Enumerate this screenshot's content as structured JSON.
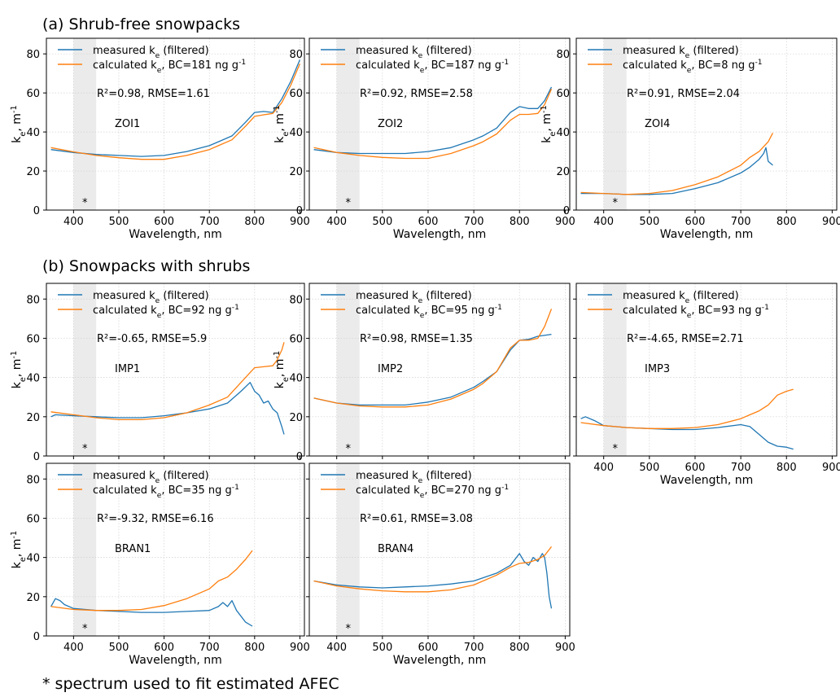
{
  "section_titles": {
    "a": "(a) Shrub-free snowpacks",
    "b": "(b) Snowpacks with shrubs"
  },
  "footnote": "* spectrum used to fit estimated AFEC",
  "colors": {
    "measured": "#1f77b4",
    "calculated": "#ff7f0e",
    "shade": "#ebebeb",
    "grid": "#d0d0d0"
  },
  "chart_data": [
    {
      "type": "line",
      "site": "ZOI1",
      "xlabel": "Wavelength, nm",
      "ylabel": "k_e, m^-1",
      "xlim": [
        340,
        910
      ],
      "ylim": [
        0,
        88
      ],
      "xticks": [
        400,
        500,
        600,
        700,
        800,
        900
      ],
      "yticks": [
        0,
        20,
        40,
        60,
        80
      ],
      "shaded_range": [
        400,
        450
      ],
      "marker_label": "*",
      "legend": [
        "measured k_e (filtered)",
        "calculated k_e, BC=181 ng g^-1"
      ],
      "stats": "R²=0.98, RMSE=1.61",
      "series": [
        {
          "name": "measured k_e (filtered)",
          "x": [
            350,
            400,
            450,
            500,
            550,
            600,
            650,
            700,
            720,
            750,
            780,
            800,
            820,
            840,
            860,
            880,
            900
          ],
          "y": [
            31,
            29.5,
            28.5,
            28,
            27.5,
            28,
            30,
            33,
            35,
            38,
            45,
            50,
            50.5,
            50,
            57,
            66,
            77
          ]
        },
        {
          "name": "calculated k_e, BC=181 ng g^-1",
          "x": [
            350,
            400,
            450,
            500,
            550,
            600,
            650,
            700,
            720,
            750,
            780,
            800,
            820,
            840,
            860,
            880,
            900
          ],
          "y": [
            32,
            29.8,
            28,
            26.8,
            26,
            26,
            28,
            31,
            33,
            36,
            43,
            48,
            48.8,
            49.5,
            55,
            64,
            75
          ]
        }
      ]
    },
    {
      "type": "line",
      "site": "ZOI2",
      "xlabel": "Wavelength, nm",
      "ylabel": "k_e, m^-1",
      "xlim": [
        340,
        910
      ],
      "ylim": [
        0,
        88
      ],
      "xticks": [
        400,
        500,
        600,
        700,
        800,
        900
      ],
      "yticks": [
        0,
        20,
        40,
        60,
        80
      ],
      "shaded_range": [
        400,
        450
      ],
      "marker_label": "*",
      "legend": [
        "measured k_e (filtered)",
        "calculated k_e, BC=187 ng g^-1"
      ],
      "stats": "R²=0.92, RMSE=2.58",
      "series": [
        {
          "name": "measured k_e (filtered)",
          "x": [
            350,
            400,
            450,
            500,
            550,
            600,
            650,
            700,
            720,
            750,
            780,
            800,
            820,
            840,
            855,
            870
          ],
          "y": [
            31,
            29.5,
            29,
            29,
            29,
            30,
            32,
            36,
            38,
            42,
            50,
            53,
            52,
            52,
            56,
            63
          ]
        },
        {
          "name": "calculated k_e, BC=187 ng g^-1",
          "x": [
            350,
            400,
            450,
            500,
            550,
            600,
            650,
            700,
            720,
            750,
            780,
            800,
            820,
            840,
            855,
            870
          ],
          "y": [
            32,
            29.5,
            28,
            27,
            26.5,
            26.5,
            29,
            33,
            35,
            39,
            46,
            49,
            49,
            49.5,
            54,
            62
          ]
        }
      ]
    },
    {
      "type": "line",
      "site": "ZOI4",
      "xlabel": "Wavelength, nm",
      "ylabel": "k_e, m^-1",
      "xlim": [
        340,
        910
      ],
      "ylim": [
        0,
        88
      ],
      "xticks": [
        400,
        500,
        600,
        700,
        800,
        900
      ],
      "yticks": [
        0,
        20,
        40,
        60,
        80
      ],
      "shaded_range": [
        400,
        450
      ],
      "marker_label": "*",
      "legend": [
        "measured k_e (filtered)",
        "calculated k_e, BC=8 ng g^-1"
      ],
      "stats": "R²=0.91, RMSE=2.04",
      "series": [
        {
          "name": "measured k_e (filtered)",
          "x": [
            350,
            400,
            450,
            500,
            550,
            600,
            650,
            700,
            720,
            740,
            750,
            755,
            760,
            770
          ],
          "y": [
            8.5,
            8.5,
            8,
            8,
            8.5,
            11,
            14,
            19,
            22,
            26,
            29,
            32,
            25,
            23
          ]
        },
        {
          "name": "calculated k_e, BC=8 ng g^-1",
          "x": [
            350,
            400,
            450,
            500,
            550,
            600,
            650,
            700,
            720,
            740,
            760,
            770
          ],
          "y": [
            9,
            8.5,
            8,
            8.5,
            10,
            13,
            17,
            23,
            27,
            30,
            35,
            39.5
          ]
        }
      ]
    },
    {
      "type": "line",
      "site": "IMP1",
      "xlabel": "",
      "ylabel": "k_e, m^-1",
      "xlim": [
        340,
        910
      ],
      "ylim": [
        0,
        88
      ],
      "xticks": [
        400,
        500,
        600,
        700,
        800,
        900
      ],
      "yticks": [
        0,
        20,
        40,
        60,
        80
      ],
      "shaded_range": [
        400,
        450
      ],
      "marker_label": "*",
      "legend": [
        "measured k_e (filtered)",
        "calculated k_e, BC=92 ng g^-1"
      ],
      "stats": "R²=-0.65, RMSE=5.9",
      "series": [
        {
          "name": "measured k_e (filtered)",
          "x": [
            350,
            360,
            400,
            450,
            500,
            550,
            600,
            650,
            700,
            740,
            770,
            790,
            800,
            810,
            820,
            830,
            840,
            850,
            860,
            865
          ],
          "y": [
            20,
            21,
            20.5,
            20,
            19.5,
            19.5,
            20.5,
            22,
            24,
            27,
            33,
            37.5,
            33,
            31,
            27,
            28,
            24,
            22,
            15,
            11
          ]
        },
        {
          "name": "calculated k_e, BC=92 ng g^-1",
          "x": [
            350,
            400,
            450,
            500,
            550,
            600,
            650,
            700,
            740,
            780,
            800,
            820,
            840,
            850,
            860,
            865
          ],
          "y": [
            22.5,
            21,
            19.5,
            18.5,
            18.5,
            19.5,
            22,
            26,
            30,
            40,
            45,
            45.5,
            46,
            49,
            54,
            58
          ]
        }
      ]
    },
    {
      "type": "line",
      "site": "IMP2",
      "xlabel": "",
      "ylabel": "k_e, m^-1",
      "xlim": [
        340,
        910
      ],
      "ylim": [
        0,
        88
      ],
      "xticks": [
        400,
        500,
        600,
        700,
        800,
        900
      ],
      "yticks": [
        0,
        20,
        40,
        60,
        80
      ],
      "shaded_range": [
        400,
        450
      ],
      "marker_label": "*",
      "legend": [
        "measured k_e (filtered)",
        "calculated k_e, BC=95 ng g^-1"
      ],
      "stats": "R²=0.98, RMSE=1.35",
      "series": [
        {
          "name": "measured k_e (filtered)",
          "x": [
            350,
            400,
            450,
            500,
            550,
            600,
            650,
            700,
            720,
            750,
            780,
            800,
            820,
            840,
            870
          ],
          "y": [
            29.5,
            27,
            26,
            26,
            26,
            27.5,
            30,
            35,
            38,
            43,
            54,
            59,
            59.5,
            61,
            62
          ]
        },
        {
          "name": "calculated k_e, BC=95 ng g^-1",
          "x": [
            350,
            400,
            450,
            500,
            550,
            600,
            650,
            700,
            720,
            750,
            780,
            800,
            820,
            840,
            855,
            870
          ],
          "y": [
            29.5,
            27,
            25.5,
            25,
            25,
            26,
            29,
            34,
            37,
            43,
            55,
            59,
            59,
            60,
            66,
            75
          ]
        }
      ]
    },
    {
      "type": "line",
      "site": "IMP3",
      "xlabel": "Wavelength, nm",
      "ylabel": "",
      "xlim": [
        340,
        910
      ],
      "ylim": [
        0,
        88
      ],
      "xticks": [
        400,
        500,
        600,
        700,
        800,
        900
      ],
      "yticks": [],
      "shaded_range": [
        400,
        450
      ],
      "marker_label": "*",
      "legend": [
        "measured k_e (filtered)",
        "calculated k_e, BC=93 ng g^-1"
      ],
      "stats": "R²=-4.65, RMSE=2.71",
      "series": [
        {
          "name": "measured k_e (filtered)",
          "x": [
            350,
            360,
            380,
            400,
            450,
            500,
            550,
            600,
            650,
            700,
            720,
            740,
            760,
            780,
            800,
            815
          ],
          "y": [
            19,
            20,
            18,
            15.5,
            14.5,
            14,
            13.5,
            13.5,
            14.5,
            16,
            15,
            11,
            7,
            5,
            4.5,
            3.5
          ]
        },
        {
          "name": "calculated k_e, BC=93 ng g^-1",
          "x": [
            350,
            400,
            450,
            500,
            550,
            600,
            650,
            700,
            720,
            740,
            760,
            780,
            800,
            815
          ],
          "y": [
            17,
            15.5,
            14.5,
            14,
            14,
            14.5,
            16,
            19,
            21,
            23,
            26,
            31,
            33,
            34
          ]
        }
      ]
    },
    {
      "type": "line",
      "site": "BRAN1",
      "xlabel": "Wavelength, nm",
      "ylabel": "k_e, m^-1",
      "xlim": [
        340,
        910
      ],
      "ylim": [
        0,
        88
      ],
      "xticks": [
        400,
        500,
        600,
        700,
        800,
        900
      ],
      "yticks": [
        0,
        20,
        40,
        60,
        80
      ],
      "shaded_range": [
        400,
        450
      ],
      "marker_label": "*",
      "legend": [
        "measured k_e (filtered)",
        "calculated k_e, BC=35 ng g^-1"
      ],
      "stats": "R²=-9.32, RMSE=6.16",
      "series": [
        {
          "name": "measured k_e (filtered)",
          "x": [
            350,
            360,
            370,
            380,
            400,
            450,
            500,
            550,
            600,
            650,
            700,
            720,
            730,
            740,
            750,
            760,
            780,
            795
          ],
          "y": [
            15,
            19,
            18,
            16,
            14,
            13,
            12.5,
            12,
            12,
            12.5,
            13,
            15,
            17,
            15,
            18,
            13,
            7,
            5
          ]
        },
        {
          "name": "calculated k_e, BC=35 ng g^-1",
          "x": [
            350,
            400,
            450,
            500,
            550,
            600,
            650,
            700,
            720,
            740,
            760,
            780,
            795
          ],
          "y": [
            15,
            13.5,
            13,
            13,
            13.5,
            15.5,
            19,
            24,
            28,
            30,
            34,
            39,
            43.5
          ]
        }
      ]
    },
    {
      "type": "line",
      "site": "BRAN4",
      "xlabel": "Wavelength, nm",
      "ylabel": "",
      "xlim": [
        340,
        910
      ],
      "ylim": [
        0,
        88
      ],
      "xticks": [
        400,
        500,
        600,
        700,
        800,
        900
      ],
      "yticks": [],
      "shaded_range": [
        400,
        450
      ],
      "marker_label": "*",
      "legend": [
        "measured k_e (filtered)",
        "calculated k_e, BC=270 ng g^-1"
      ],
      "stats": "R²=0.61, RMSE=3.08",
      "series": [
        {
          "name": "measured k_e (filtered)",
          "x": [
            350,
            400,
            450,
            500,
            550,
            600,
            650,
            700,
            750,
            780,
            800,
            810,
            820,
            830,
            840,
            850,
            855,
            860,
            865,
            870
          ],
          "y": [
            28,
            26,
            25,
            24.5,
            25,
            25.5,
            26.5,
            28,
            32,
            36,
            42,
            38,
            36,
            40,
            38,
            42,
            40,
            32,
            20,
            14
          ]
        },
        {
          "name": "calculated k_e, BC=270 ng g^-1",
          "x": [
            350,
            400,
            450,
            500,
            550,
            600,
            650,
            700,
            750,
            780,
            800,
            820,
            840,
            855,
            870
          ],
          "y": [
            28,
            25.5,
            24,
            23,
            22.5,
            22.5,
            23.5,
            26,
            31,
            35,
            37,
            37.5,
            39,
            41,
            45.5
          ]
        }
      ]
    }
  ]
}
